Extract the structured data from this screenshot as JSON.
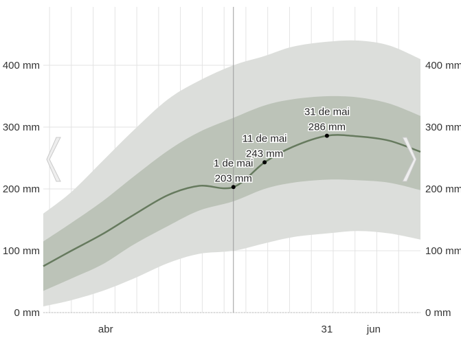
{
  "chart_data": {
    "type": "area",
    "title": "",
    "xlabel": "",
    "ylabel": "",
    "y_unit": "mm",
    "ylim": [
      0,
      450
    ],
    "y_ticks": [
      0,
      100,
      200,
      300,
      400
    ],
    "y_tick_labels": [
      "0 mm",
      "100 mm",
      "200 mm",
      "300 mm",
      "400 mm"
    ],
    "x_tick_labels": [
      {
        "date": "2024-03-21",
        "label": "abr"
      },
      {
        "date": "2024-05-31",
        "label": "31"
      },
      {
        "date": "2024-06-15",
        "label": "jun"
      }
    ],
    "x_range": [
      "2024-03-01",
      "2024-06-30"
    ],
    "dates": [
      "2024-03-01",
      "2024-03-10",
      "2024-03-20",
      "2024-03-30",
      "2024-04-10",
      "2024-04-20",
      "2024-05-01",
      "2024-05-11",
      "2024-05-20",
      "2024-05-31",
      "2024-06-10",
      "2024-06-20",
      "2024-06-30"
    ],
    "series": [
      {
        "key": "p90",
        "values": [
          160,
          195,
          245,
          295,
          345,
          375,
          400,
          415,
          430,
          438,
          440,
          432,
          410
        ]
      },
      {
        "key": "p75",
        "values": [
          115,
          145,
          180,
          220,
          262,
          292,
          315,
          335,
          345,
          350,
          348,
          338,
          318
        ]
      },
      {
        "key": "median",
        "values": [
          75,
          100,
          127,
          158,
          190,
          205,
          203,
          243,
          268,
          286,
          285,
          278,
          260
        ]
      },
      {
        "key": "p25",
        "values": [
          35,
          55,
          78,
          110,
          140,
          165,
          180,
          200,
          210,
          215,
          214,
          210,
          198
        ]
      },
      {
        "key": "p10",
        "values": [
          10,
          20,
          35,
          55,
          80,
          95,
          100,
          112,
          122,
          128,
          132,
          128,
          118
        ]
      }
    ],
    "annotations": [
      {
        "date": "2024-05-01",
        "value": 203,
        "label_date": "1 de mai",
        "label_value": "203 mm"
      },
      {
        "date": "2024-05-11",
        "value": 243,
        "label_date": "11 de mai",
        "label_value": "243 mm"
      },
      {
        "date": "2024-05-31",
        "value": 286,
        "label_date": "31 de mai",
        "label_value": "286 mm"
      }
    ],
    "grid": true,
    "colors": {
      "outer_band": "#dcdedb",
      "inner_band": "#bcc3b8",
      "median_line": "#667a5e",
      "grid": "#e3e3e3",
      "marker": "#000000",
      "nav_arrow": "#d8d8d8"
    }
  },
  "nav": {
    "prev_icon": "chevron-left-icon",
    "next_icon": "chevron-right-icon"
  }
}
